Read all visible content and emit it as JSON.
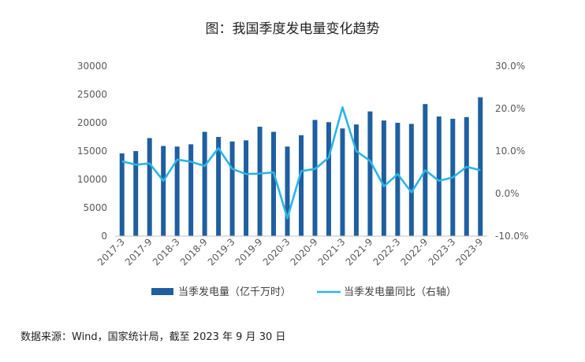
{
  "chart_data": {
    "type": "bar",
    "title": "图：我国季度发电量变化趋势",
    "categories": [
      "2017-3",
      "2017-6",
      "2017-9",
      "2017-12",
      "2018-3",
      "2018-6",
      "2018-9",
      "2018-12",
      "2019-3",
      "2019-6",
      "2019-9",
      "2019-12",
      "2020-3",
      "2020-6",
      "2020-9",
      "2020-12",
      "2021-3",
      "2021-6",
      "2021-9",
      "2021-12",
      "2022-3",
      "2022-6",
      "2022-9",
      "2022-12",
      "2023-3",
      "2023-6",
      "2023-9"
    ],
    "x_tick_labels": [
      "2017-3",
      "2017-9",
      "2018-3",
      "2018-9",
      "2019-3",
      "2019-9",
      "2020-3",
      "2020-9",
      "2021-3",
      "2021-9",
      "2022-3",
      "2022-9",
      "2023-3",
      "2023-9"
    ],
    "series": [
      {
        "name": "当季发电量（亿千万时）",
        "type": "bar",
        "axis": "left",
        "color": "#1f5fa0",
        "values": [
          14600,
          15000,
          17300,
          15900,
          15800,
          16200,
          18400,
          17500,
          16700,
          16900,
          19300,
          18400,
          15800,
          17800,
          20500,
          20100,
          19000,
          19700,
          22000,
          20400,
          20000,
          19800,
          23300,
          21100,
          20700,
          21000,
          24500
        ]
      },
      {
        "name": "当季发电量同比（右轴）",
        "type": "line",
        "axis": "right",
        "color": "#2bb4e6",
        "values": [
          7.6,
          6.8,
          7.1,
          3.0,
          8.0,
          7.5,
          6.5,
          10.7,
          5.8,
          4.6,
          4.7,
          5.0,
          -5.8,
          5.3,
          5.8,
          8.5,
          20.3,
          10.0,
          7.7,
          1.7,
          4.6,
          0.3,
          5.5,
          3.0,
          3.8,
          6.3,
          5.5
        ]
      }
    ],
    "y_left": {
      "ticks": [
        0,
        5000,
        10000,
        15000,
        20000,
        25000,
        30000
      ],
      "range": [
        0,
        30000
      ]
    },
    "y_right": {
      "ticks": [
        "-10.0%",
        "0.0%",
        "10.0%",
        "20.0%",
        "30.0%"
      ],
      "values": [
        -10,
        0,
        10,
        20,
        30
      ],
      "range": [
        -10,
        30
      ]
    },
    "grid": false,
    "legend_position": "bottom"
  },
  "source_note": "数据来源：Wind，国家统计局，截至 2023 年 9 月 30 日"
}
